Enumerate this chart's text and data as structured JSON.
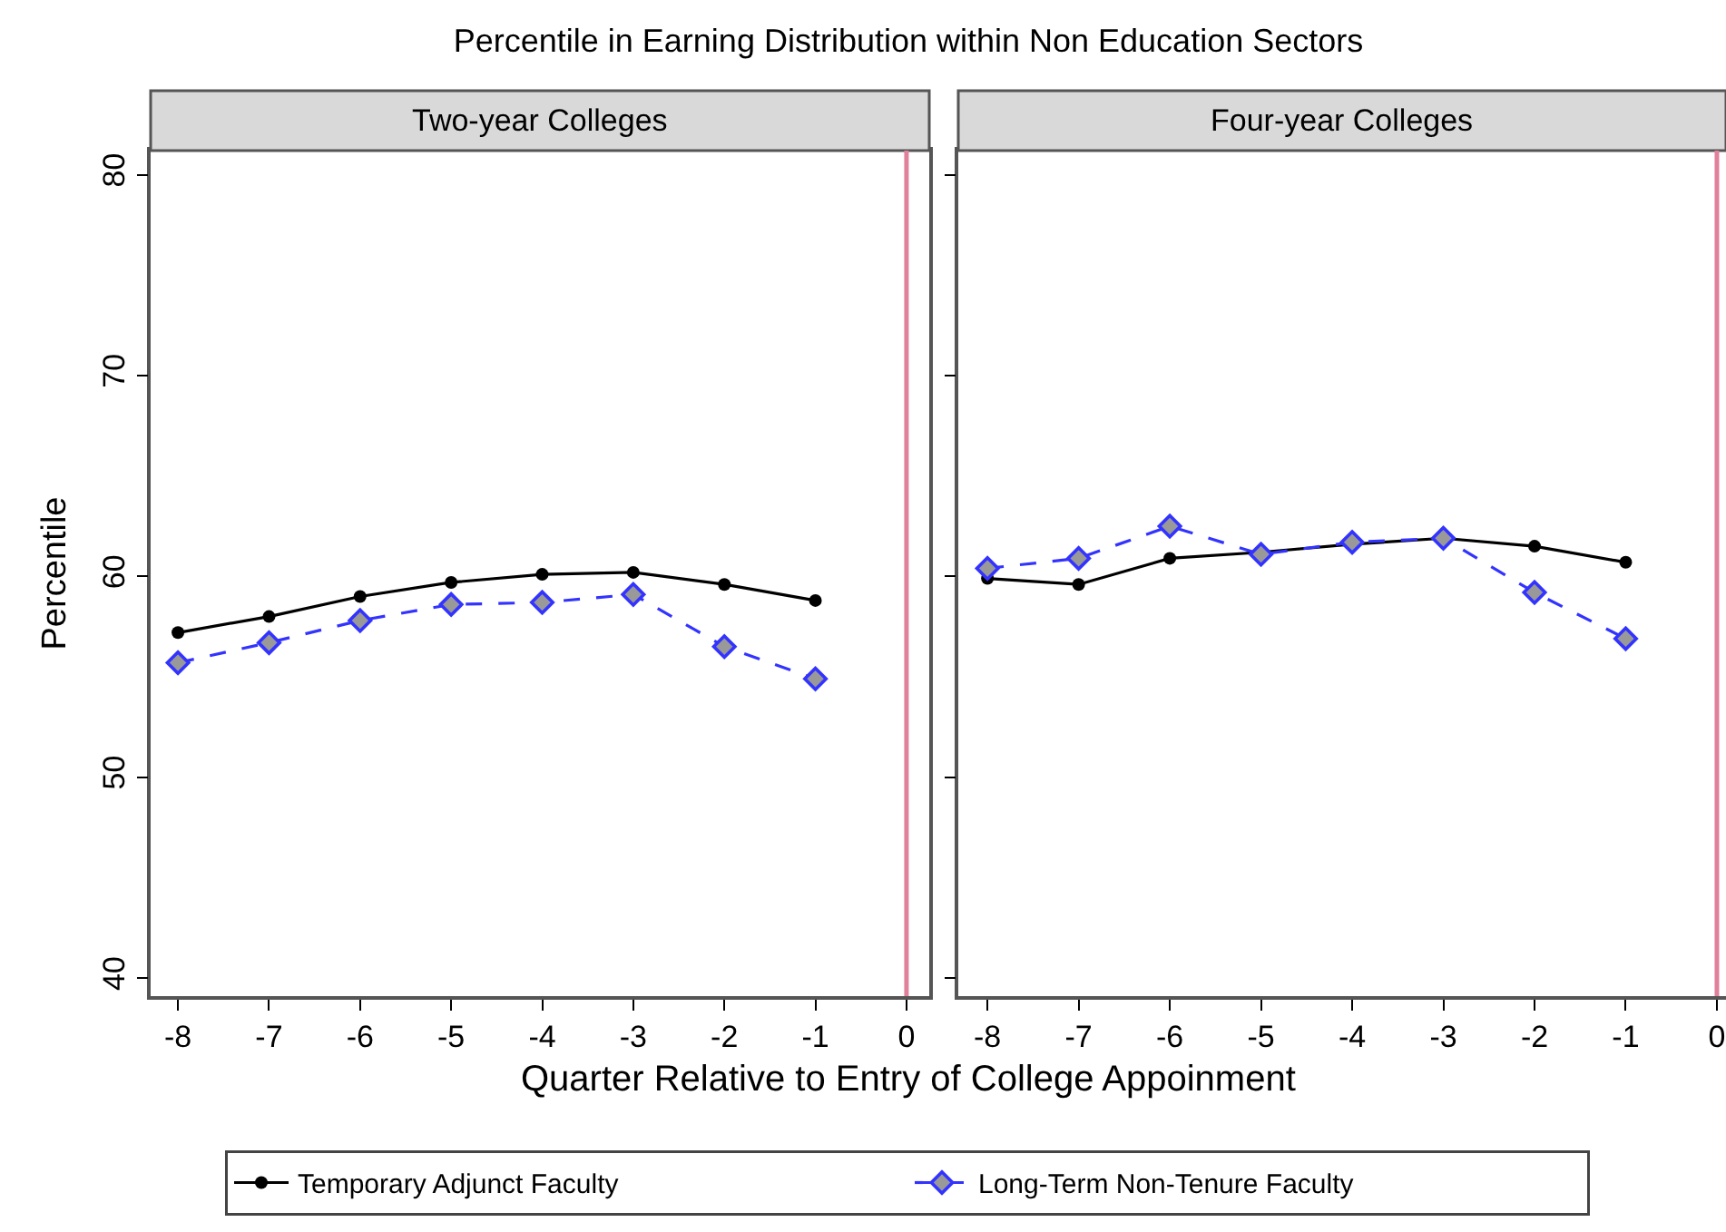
{
  "chart_data": [
    {
      "type": "line",
      "title": "Percentile in Earning Distribution within Non Education Sectors",
      "subtitle": "Two-year Colleges",
      "xlabel": "Quarter Relative to Entry of College Appoinment",
      "ylabel": "Percentile",
      "x": [
        -8,
        -7,
        -6,
        -5,
        -4,
        -3,
        -2,
        -1
      ],
      "series": [
        {
          "name": "Temporary Adjunct Faculty",
          "color": "#000000",
          "marker": "circle",
          "line_style": "solid",
          "values": [
            57.2,
            58.0,
            59.0,
            59.7,
            60.1,
            60.2,
            59.6,
            58.8
          ]
        },
        {
          "name": "Long-Term Non-Tenure Faculty",
          "color": "#3333ff",
          "marker": "diamond",
          "line_style": "dashed",
          "values": [
            55.7,
            56.7,
            57.8,
            58.6,
            58.7,
            59.1,
            56.5,
            54.9
          ]
        }
      ],
      "xlim": [
        -8.3,
        0.25
      ],
      "xticks": [
        -8,
        -7,
        -6,
        -5,
        -4,
        -3,
        -2,
        -1,
        0
      ],
      "ylim": [
        39.1,
        81.2
      ],
      "yticks": [
        40,
        50,
        60,
        70,
        80
      ],
      "ref_lines": [
        {
          "axis": "x",
          "value": 0,
          "color": "#e0809a"
        }
      ],
      "grid": false,
      "legend": "bottom"
    },
    {
      "type": "line",
      "subtitle": "Four-year Colleges",
      "x": [
        -8,
        -7,
        -6,
        -5,
        -4,
        -3,
        -2,
        -1
      ],
      "series": [
        {
          "color": "#000000",
          "marker": "circle",
          "line_style": "solid",
          "values": [
            59.9,
            59.6,
            60.9,
            61.2,
            61.6,
            61.9,
            61.5,
            60.7
          ]
        },
        {
          "color": "#3333ff",
          "marker": "diamond",
          "line_style": "dashed",
          "values": [
            60.4,
            60.9,
            62.5,
            61.1,
            61.7,
            61.9,
            59.2,
            56.9
          ]
        }
      ],
      "xlim": [
        -8.32,
        0.1
      ],
      "xticks": [
        -8,
        -7,
        -6,
        -5,
        -4,
        -3,
        -2,
        -1,
        0
      ],
      "ylim": [
        39.1,
        81.2
      ],
      "yticks": [
        40,
        50,
        60,
        70,
        80
      ],
      "ref_lines": [
        {
          "axis": "x",
          "value": 0,
          "color": "#e0809a"
        }
      ],
      "grid": false,
      "tick_labels": "x"
    }
  ]
}
